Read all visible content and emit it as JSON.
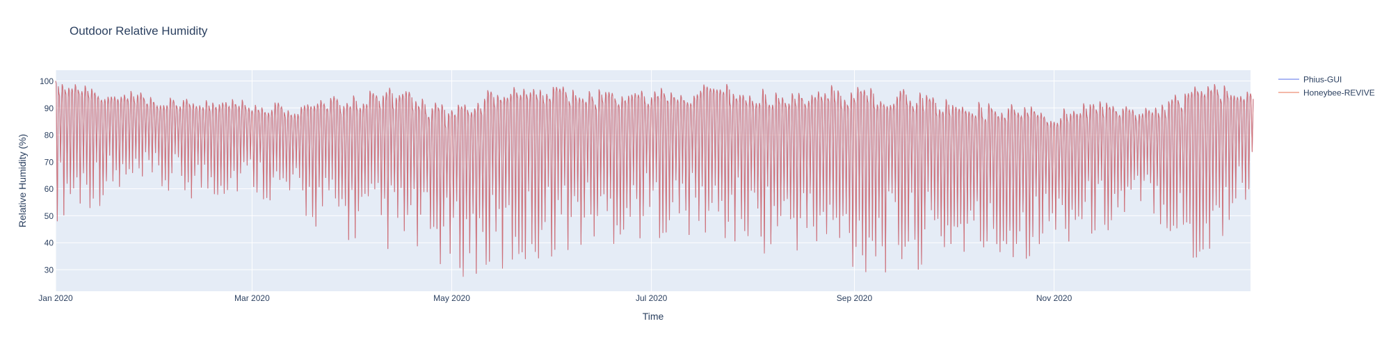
{
  "chart_data": {
    "type": "line",
    "title": "Outdoor Relative Humidity",
    "xlabel": "Time",
    "ylabel": "Relative Humidity (%)",
    "x_range": [
      "2020-01-01",
      "2020-12-31"
    ],
    "ylim": [
      22,
      104
    ],
    "x_ticks": [
      {
        "date": "2020-01-01",
        "label": "Jan 2020"
      },
      {
        "date": "2020-03-01",
        "label": "Mar 2020"
      },
      {
        "date": "2020-05-01",
        "label": "May 2020"
      },
      {
        "date": "2020-07-01",
        "label": "Jul 2020"
      },
      {
        "date": "2020-09-01",
        "label": "Sep 2020"
      },
      {
        "date": "2020-11-01",
        "label": "Nov 2020"
      }
    ],
    "y_ticks": [
      30,
      40,
      50,
      60,
      70,
      80,
      90,
      100
    ],
    "grid": true,
    "legend_position": "top-right, outside plot",
    "series": [
      {
        "name": "Phius-GUI",
        "color": "#8f9df0",
        "x": [
          "2020-01-01",
          "2020-01-15",
          "2020-02-01",
          "2020-02-15",
          "2020-03-01",
          "2020-03-15",
          "2020-04-01",
          "2020-04-15",
          "2020-05-01",
          "2020-05-15",
          "2020-06-01",
          "2020-06-15",
          "2020-07-01",
          "2020-07-15",
          "2020-08-01",
          "2020-08-15",
          "2020-09-01",
          "2020-09-15",
          "2020-10-01",
          "2020-10-15",
          "2020-11-01",
          "2020-11-15",
          "2020-12-01",
          "2020-12-15",
          "2020-12-31"
        ],
        "daily_max": [
          100,
          98,
          95,
          94,
          93,
          92,
          96,
          98,
          90,
          100,
          100,
          97,
          97,
          99,
          99,
          98,
          99,
          98,
          93,
          92,
          90,
          93,
          90,
          100,
          98
        ],
        "daily_min": [
          48,
          54,
          56,
          55,
          58,
          48,
          38,
          35,
          28,
          25,
          35,
          38,
          42,
          40,
          36,
          35,
          27,
          28,
          32,
          30,
          38,
          42,
          50,
          25,
          58
        ]
      },
      {
        "name": "Honeybee-REVIVE",
        "color": "#f0a08c",
        "x": [
          "2020-01-01",
          "2020-01-15",
          "2020-02-01",
          "2020-02-15",
          "2020-03-01",
          "2020-03-15",
          "2020-04-01",
          "2020-04-15",
          "2020-05-01",
          "2020-05-15",
          "2020-06-01",
          "2020-06-15",
          "2020-07-01",
          "2020-07-15",
          "2020-08-01",
          "2020-08-15",
          "2020-09-01",
          "2020-09-15",
          "2020-10-01",
          "2020-10-15",
          "2020-11-01",
          "2020-11-15",
          "2020-12-01",
          "2020-12-15",
          "2020-12-31"
        ],
        "daily_max": [
          100,
          98,
          95,
          94,
          93,
          92,
          96,
          98,
          90,
          100,
          100,
          97,
          97,
          99,
          99,
          98,
          99,
          98,
          93,
          92,
          90,
          93,
          90,
          100,
          98
        ],
        "daily_min": [
          48,
          54,
          56,
          55,
          58,
          48,
          38,
          35,
          28,
          25,
          35,
          38,
          42,
          40,
          36,
          35,
          27,
          28,
          32,
          30,
          38,
          42,
          50,
          25,
          58
        ]
      }
    ]
  },
  "colors": {
    "plot_background": "#e5ecf6",
    "grid": "#ffffff",
    "text": "#2a3f5f",
    "overlap_line": "#c46070"
  }
}
